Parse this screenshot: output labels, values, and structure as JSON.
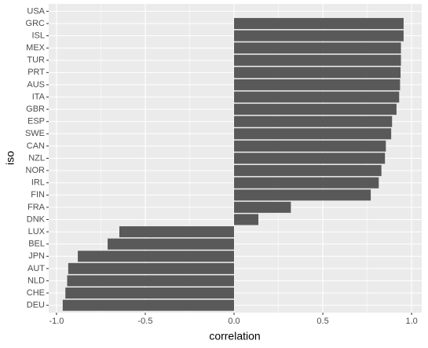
{
  "chart_data": {
    "type": "bar",
    "orientation": "horizontal",
    "x_label": "correlation",
    "y_label": "iso",
    "categories": [
      "USA",
      "GRC",
      "ISL",
      "MEX",
      "TUR",
      "PRT",
      "AUS",
      "ITA",
      "GBR",
      "ESP",
      "SWE",
      "CAN",
      "NZL",
      "NOR",
      "IRL",
      "FIN",
      "FRA",
      "DNK",
      "LUX",
      "BEL",
      "JPN",
      "AUT",
      "NLD",
      "CHE",
      "DEU"
    ],
    "values": [
      null,
      0.955,
      0.955,
      0.94,
      0.94,
      0.938,
      0.935,
      0.93,
      0.915,
      0.89,
      0.885,
      0.855,
      0.85,
      0.83,
      0.815,
      0.77,
      0.32,
      0.137,
      -0.646,
      -0.712,
      -0.88,
      -0.934,
      -0.94,
      -0.95,
      -0.965
    ],
    "color": "#595959",
    "xlim": [
      -1.044,
      1.057
    ],
    "xticks": [
      {
        "value": -1.0,
        "label": "-1.0"
      },
      -0.5,
      {
        "value": 0,
        "label": "0.0"
      },
      0.5,
      {
        "value": 1.0,
        "label": "1.0"
      }
    ],
    "grid": true
  }
}
